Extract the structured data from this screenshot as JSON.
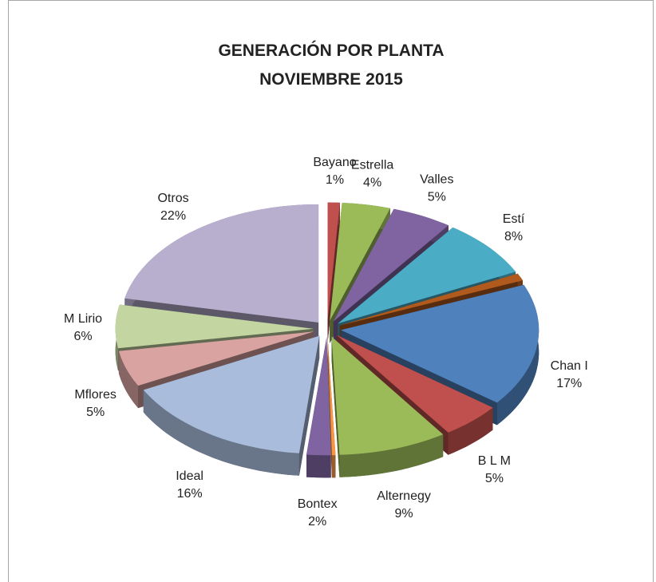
{
  "chart_data": {
    "type": "pie",
    "title": "GENERACIÓN  POR  PLANTA",
    "subtitle": "NOVIEMBRE   2015",
    "categories": [
      "Bayano",
      "Estrella",
      "Valles",
      "Estí",
      null,
      "Chan I",
      "B L M",
      "Alternegy",
      null,
      "Bontex",
      "Ideal",
      "Mflores",
      "M Lirio",
      "Otros"
    ],
    "values": [
      1,
      4,
      5,
      8,
      1,
      17,
      5,
      9,
      0.3,
      2,
      16,
      5,
      6,
      22
    ],
    "value_labels": [
      "1%",
      "4%",
      "5%",
      "8%",
      null,
      "17%",
      "5%",
      "9%",
      null,
      "2%",
      "16%",
      "5%",
      "6%",
      "22%"
    ],
    "colors": [
      "#c0504d",
      "#9bbb59",
      "#8064a2",
      "#4bacc6",
      "#b05a1e",
      "#4f81bd",
      "#c0504d",
      "#9bbb59",
      "#f79646",
      "#8064a2",
      "#a9bcdc",
      "#d9a3a2",
      "#c3d6a2",
      "#b8afcf"
    ]
  }
}
